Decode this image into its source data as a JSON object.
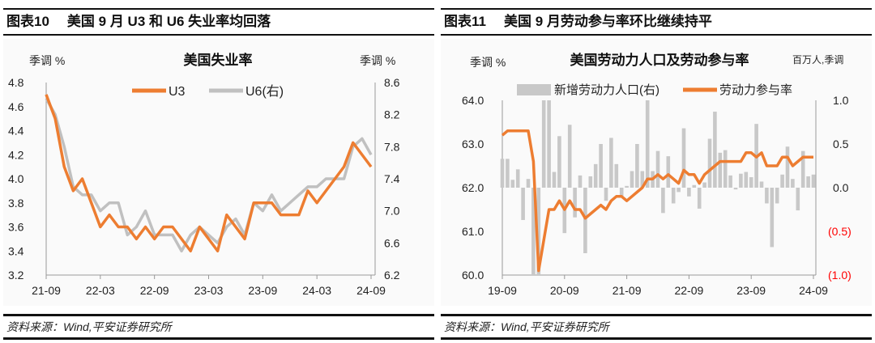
{
  "panels": [
    {
      "fig_label": "图表10",
      "fig_title": "美国 9 月 U3 和 U6 失业率均回落",
      "source": "资料来源：Wind,平安证券研究所"
    },
    {
      "fig_label": "图表11",
      "fig_title": "美国 9 月劳动参与率环比继续持平",
      "source": "资料来源：Wind,平安证券研究所"
    }
  ],
  "chart_data": [
    {
      "type": "line",
      "title": "美国失业率",
      "ylabel": "季调 %",
      "ylabel_right": "季调 %",
      "ylim": [
        3.2,
        4.8
      ],
      "ylim_right": [
        6.2,
        8.6
      ],
      "yticks": [
        "4.8",
        "4.6",
        "4.4",
        "4.2",
        "4.0",
        "3.8",
        "3.6",
        "3.4",
        "3.2"
      ],
      "yticks_right": [
        "8.6",
        "8.2",
        "7.8",
        "7.4",
        "7.0",
        "6.6",
        "6.2"
      ],
      "xticks": [
        "21-09",
        "22-03",
        "22-09",
        "23-03",
        "23-09",
        "24-03",
        "24-09"
      ],
      "x_start": "2021-09",
      "x_end": "2024-09",
      "legend": "top-center",
      "series": [
        {
          "name": "U3",
          "axis": "left",
          "color": "#ED7D31",
          "values": [
            4.7,
            4.5,
            4.1,
            3.9,
            4.0,
            3.8,
            3.6,
            3.7,
            3.6,
            3.6,
            3.5,
            3.6,
            3.5,
            3.6,
            3.6,
            3.5,
            3.4,
            3.6,
            3.5,
            3.4,
            3.7,
            3.6,
            3.5,
            3.8,
            3.8,
            3.8,
            3.7,
            3.7,
            3.7,
            3.9,
            3.8,
            3.9,
            4.0,
            4.1,
            4.3,
            4.2,
            4.1
          ]
        },
        {
          "name": "U6(右)",
          "axis": "right",
          "color": "#C0C0C0",
          "values": [
            8.4,
            8.2,
            7.8,
            7.3,
            7.2,
            7.2,
            7.0,
            7.1,
            7.1,
            6.7,
            6.8,
            7.0,
            6.7,
            6.7,
            6.7,
            6.5,
            6.7,
            6.8,
            6.7,
            6.6,
            6.8,
            6.9,
            6.7,
            7.1,
            7.0,
            7.2,
            7.0,
            7.1,
            7.2,
            7.3,
            7.3,
            7.4,
            7.4,
            7.4,
            7.8,
            7.9,
            7.7
          ]
        }
      ]
    },
    {
      "type": "bar+line",
      "title": "美国劳动力人口及劳动参与率",
      "ylabel": "季调 %",
      "ylabel_right": "百万人,季调",
      "ylim": [
        60,
        64
      ],
      "ylim_right": [
        -1,
        1
      ],
      "yticks": [
        "64.0",
        "63.0",
        "62.0",
        "61.0",
        "60.0"
      ],
      "yticks_right": [
        "1.0",
        "0.5",
        "0.0",
        "(0.5)",
        "(1.0)"
      ],
      "negative_tick_color": "#FF0000",
      "xticks": [
        "19-09",
        "20-09",
        "21-09",
        "22-09",
        "23-09",
        "24-09"
      ],
      "x_start": "2019-09",
      "x_end": "2024-09",
      "legend": "top-center",
      "series": [
        {
          "name": "新增劳动力人口(右)",
          "kind": "bar",
          "axis": "right",
          "color": "#C8C8C8",
          "values": [
            0.33,
            0.33,
            0.09,
            0.21,
            -0.37,
            0.1,
            -1.0,
            -1.0,
            1.0,
            1.0,
            0.18,
            0.59,
            -0.52,
            0.72,
            -0.34,
            0.14,
            -0.75,
            0.13,
            0.27,
            0.5,
            -0.15,
            0.57,
            0.27,
            -0.1,
            0.02,
            0.19,
            0.5,
            0.19,
            1.0,
            0.19,
            0.42,
            -0.29,
            0.36,
            -0.18,
            -0.05,
            0.68,
            -0.1,
            0.03,
            -0.24,
            0.06,
            0.56,
            0.87,
            0.4,
            0.43,
            0.14,
            -0.02,
            0.16,
            0.18,
            0.12,
            0.73,
            0.07,
            -0.18,
            -0.68,
            -0.18,
            0.15,
            0.47,
            0.1,
            -0.26,
            0.42,
            0.13,
            0.15
          ]
        },
        {
          "name": "劳动力参与率",
          "kind": "line",
          "axis": "left",
          "color": "#ED7D31",
          "values": [
            63.2,
            63.3,
            63.3,
            63.3,
            63.3,
            63.3,
            62.6,
            60.1,
            60.8,
            61.5,
            61.5,
            61.7,
            61.5,
            61.7,
            61.5,
            61.5,
            61.3,
            61.4,
            61.5,
            61.6,
            61.5,
            61.7,
            61.8,
            61.8,
            61.7,
            61.8,
            61.9,
            62.0,
            62.2,
            62.2,
            62.3,
            62.2,
            62.3,
            62.2,
            62.1,
            62.4,
            62.3,
            62.3,
            62.1,
            62.3,
            62.4,
            62.5,
            62.6,
            62.6,
            62.6,
            62.6,
            62.6,
            62.8,
            62.8,
            62.7,
            62.8,
            62.5,
            62.5,
            62.5,
            62.7,
            62.7,
            62.5,
            62.6,
            62.7,
            62.7,
            62.7
          ]
        }
      ]
    }
  ]
}
